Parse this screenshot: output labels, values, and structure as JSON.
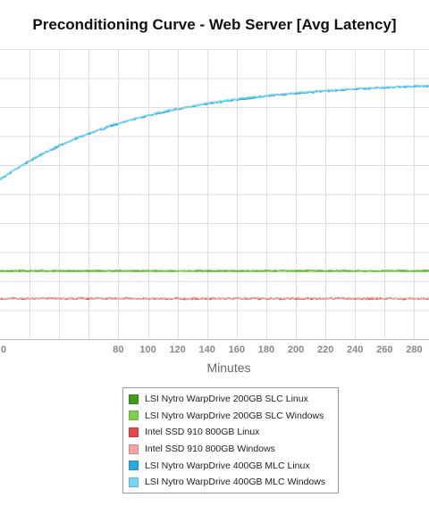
{
  "chart_data": {
    "type": "line",
    "title": "Preconditioning Curve - Web Server [Avg Latency]",
    "xlabel": "Minutes",
    "ylabel": "",
    "x_ticks": [
      "0",
      "80",
      "100",
      "120",
      "140",
      "160",
      "180",
      "200",
      "220",
      "240",
      "260",
      "280"
    ],
    "xlim": [
      0,
      290
    ],
    "grid": true,
    "legend_position": "bottom",
    "series": [
      {
        "name": "LSI Nytro WarpDrive 200GB SLC Linux",
        "color": "#3f9c1c",
        "level": 0.2355,
        "noise": 0.4
      },
      {
        "name": "LSI Nytro WarpDrive 200GB SLC Windows",
        "color": "#7ccf4a",
        "level": 0.2335,
        "noise": 0.4
      },
      {
        "name": "Intel SSD 910 800GB Linux",
        "color": "#e8474a",
        "level": 0.1395,
        "noise": 0.9
      },
      {
        "name": "Intel SSD 910 800GB Windows",
        "color": "#f5a3a1",
        "level": 0.14,
        "noise": 0.9
      },
      {
        "name": "LSI Nytro WarpDrive 400GB MLC Linux",
        "color": "#2ba8e0",
        "level": 0.8885,
        "noise": 0.8
      },
      {
        "name": "LSI Nytro WarpDrive 400GB MLC Windows",
        "color": "#79d4f5",
        "level": 0.8905,
        "noise": 0.8
      }
    ],
    "mlc_curve": {
      "start_fraction": 0.55,
      "end_fraction": 0.889,
      "time_constant_minutes": 95
    }
  }
}
